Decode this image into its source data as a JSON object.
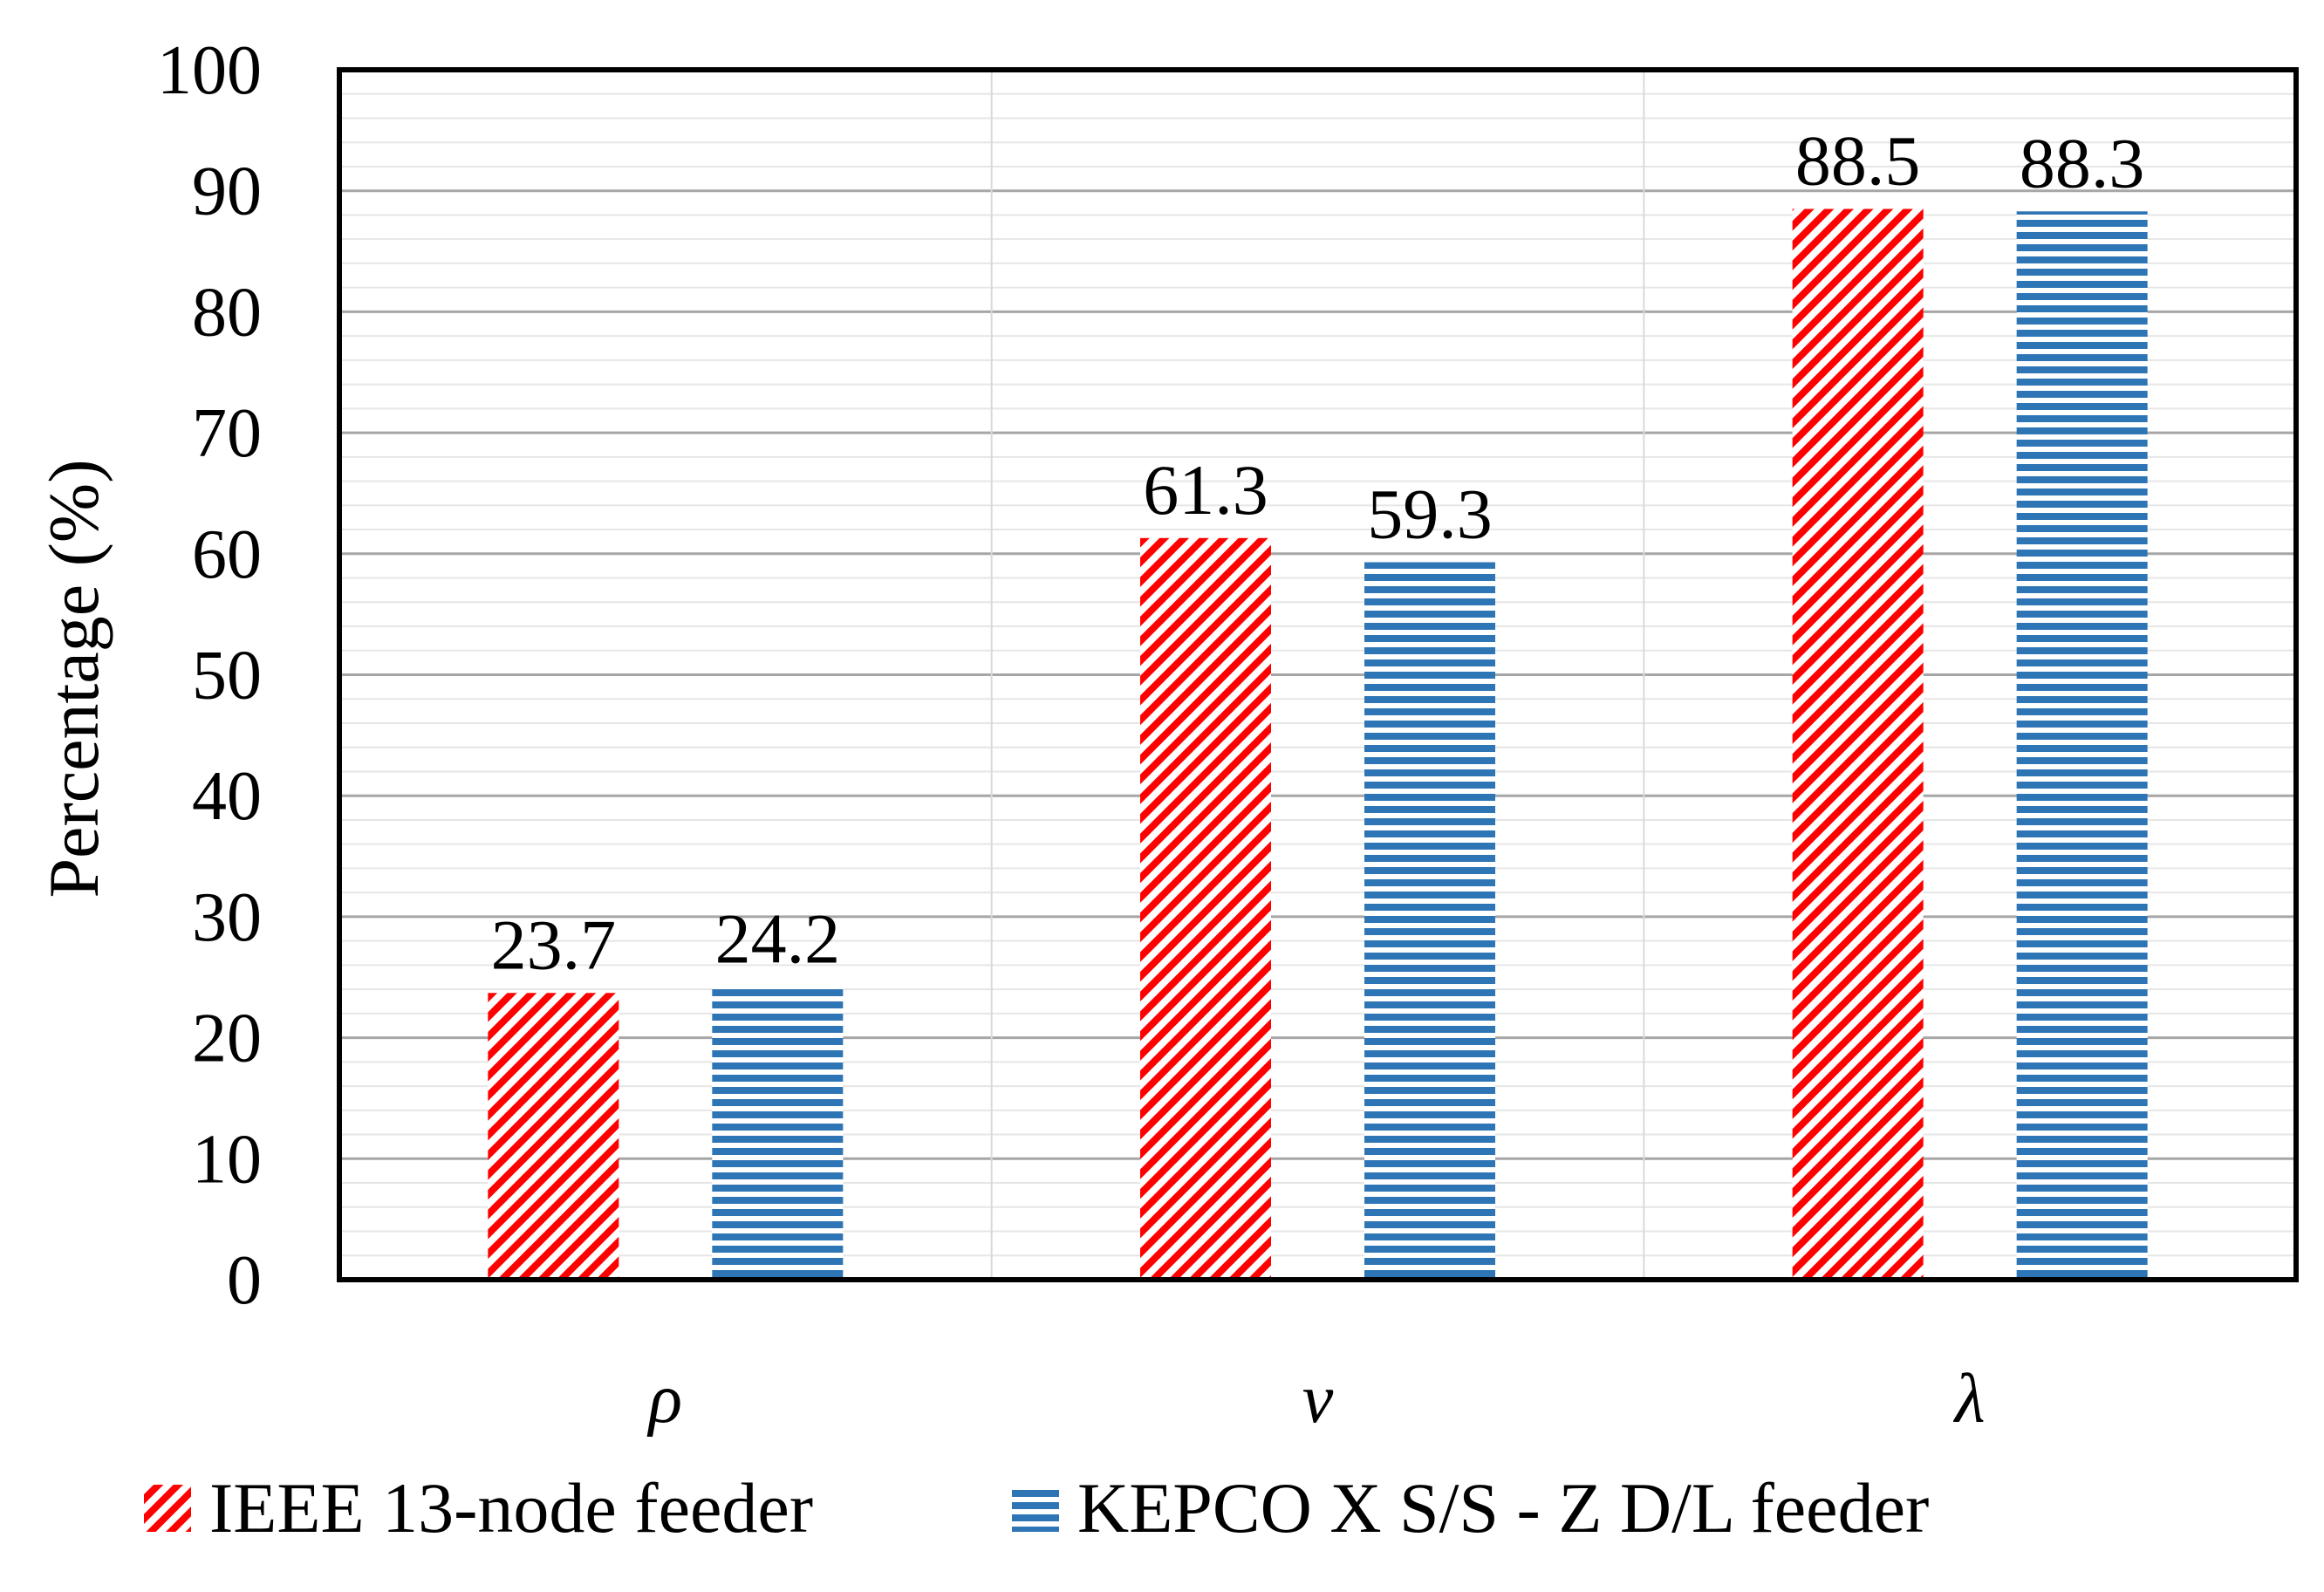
{
  "chart_data": {
    "type": "bar",
    "categories": [
      "ρ",
      "v",
      "λ"
    ],
    "series": [
      {
        "name": "IEEE 13-node feeder",
        "values": [
          23.7,
          61.3,
          88.5
        ],
        "color": "#ff0000",
        "pattern": "diagonal-stripes"
      },
      {
        "name": "KEPCO X S/S - Z D/L feeder",
        "values": [
          24.2,
          59.3,
          88.3
        ],
        "color": "#2e75b6",
        "pattern": "horizontal-stripes"
      }
    ],
    "data_labels": [
      [
        "23.7",
        "61.3",
        "88.5"
      ],
      [
        "24.2",
        "59.3",
        "88.3"
      ]
    ],
    "title": "",
    "xlabel": "",
    "ylabel": "Percentage (%)",
    "ylim": [
      0,
      100
    ],
    "yticks": [
      0,
      10,
      20,
      30,
      40,
      50,
      60,
      70,
      80,
      90,
      100
    ],
    "grid": true,
    "legend_position": "bottom"
  }
}
